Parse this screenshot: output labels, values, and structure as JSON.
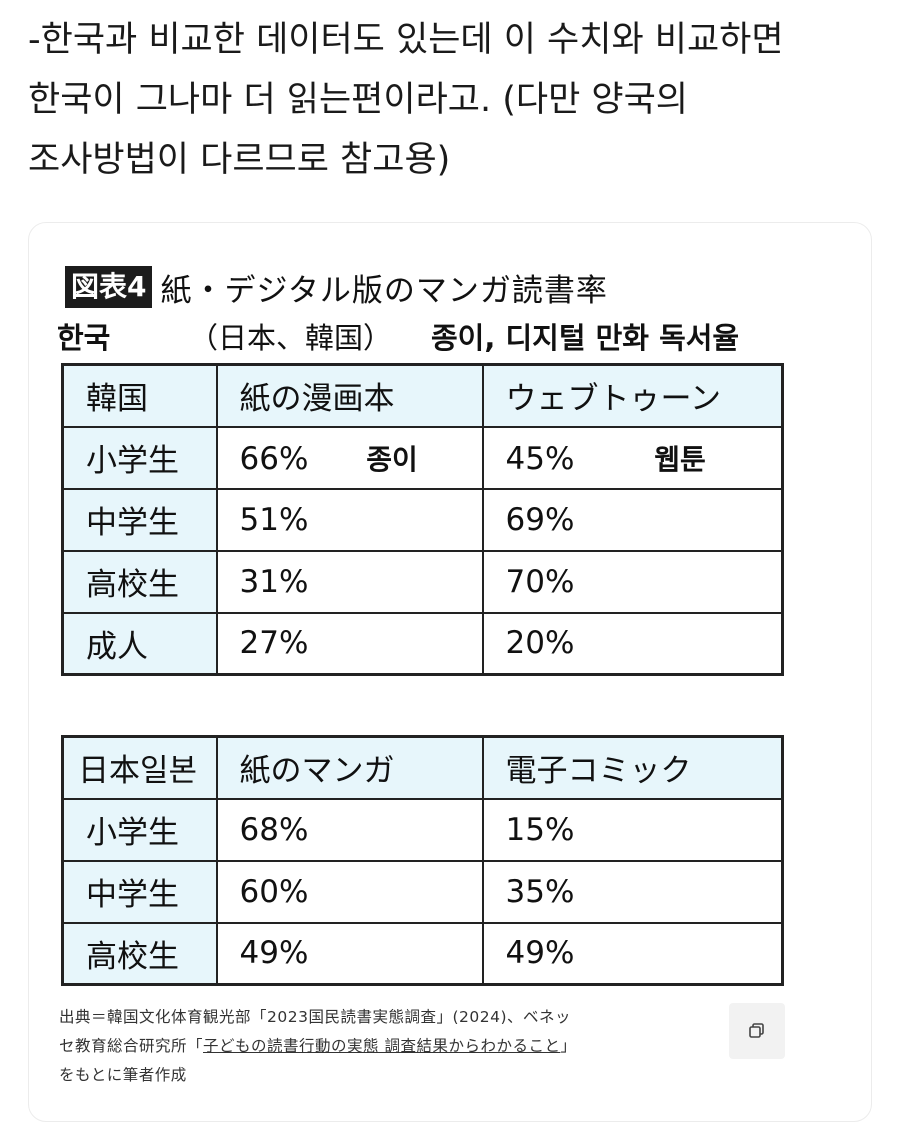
{
  "post": {
    "lines": [
      "-한국과 비교한 데이터도 있는데 이 수치와 비교하면",
      "한국이 그나마 더 읽는편이라고. (다만 양국의",
      "조사방법이 다르므로 참고용)"
    ]
  },
  "figure": {
    "badge": "図表4",
    "title": "紙・デジタル版のマンガ読書率",
    "subtitle_korean_prefix": "한국",
    "subtitle_japanese": "（日本、韓国）",
    "subtitle_korean": "종이,  디지털  만화  독서율",
    "table_korea": {
      "headers": [
        "韓国",
        "紙の漫画本",
        "ウェブトゥーン"
      ],
      "rows": [
        {
          "label": "小学生",
          "paper": "66%",
          "web": "45%"
        },
        {
          "label": "中学生",
          "paper": "51%",
          "web": "69%"
        },
        {
          "label": "高校生",
          "paper": "31%",
          "web": "70%"
        },
        {
          "label": "成人",
          "paper": "27%",
          "web": "20%"
        }
      ],
      "annotation_paper": "종이",
      "annotation_web": "웹툰"
    },
    "table_japan": {
      "headers": [
        "日本일본",
        "紙のマンガ",
        "電子コミック"
      ],
      "rows": [
        {
          "label": "小学生",
          "paper": "68%",
          "digital": "15%"
        },
        {
          "label": "中学生",
          "paper": "60%",
          "digital": "35%"
        },
        {
          "label": "高校生",
          "paper": "49%",
          "digital": "49%"
        }
      ]
    },
    "source": {
      "line1": "出典＝韓国文化体育観光部「2023国民読書実態調査」(2024)、ベネッ",
      "line2_prefix": "セ教育総合研究所「",
      "line2_link": "子どもの読書行動の実態 調査結果からわかること",
      "line2_suffix": "」",
      "line3": "をもとに筆者作成"
    }
  },
  "copy_icon": "copy-icon"
}
